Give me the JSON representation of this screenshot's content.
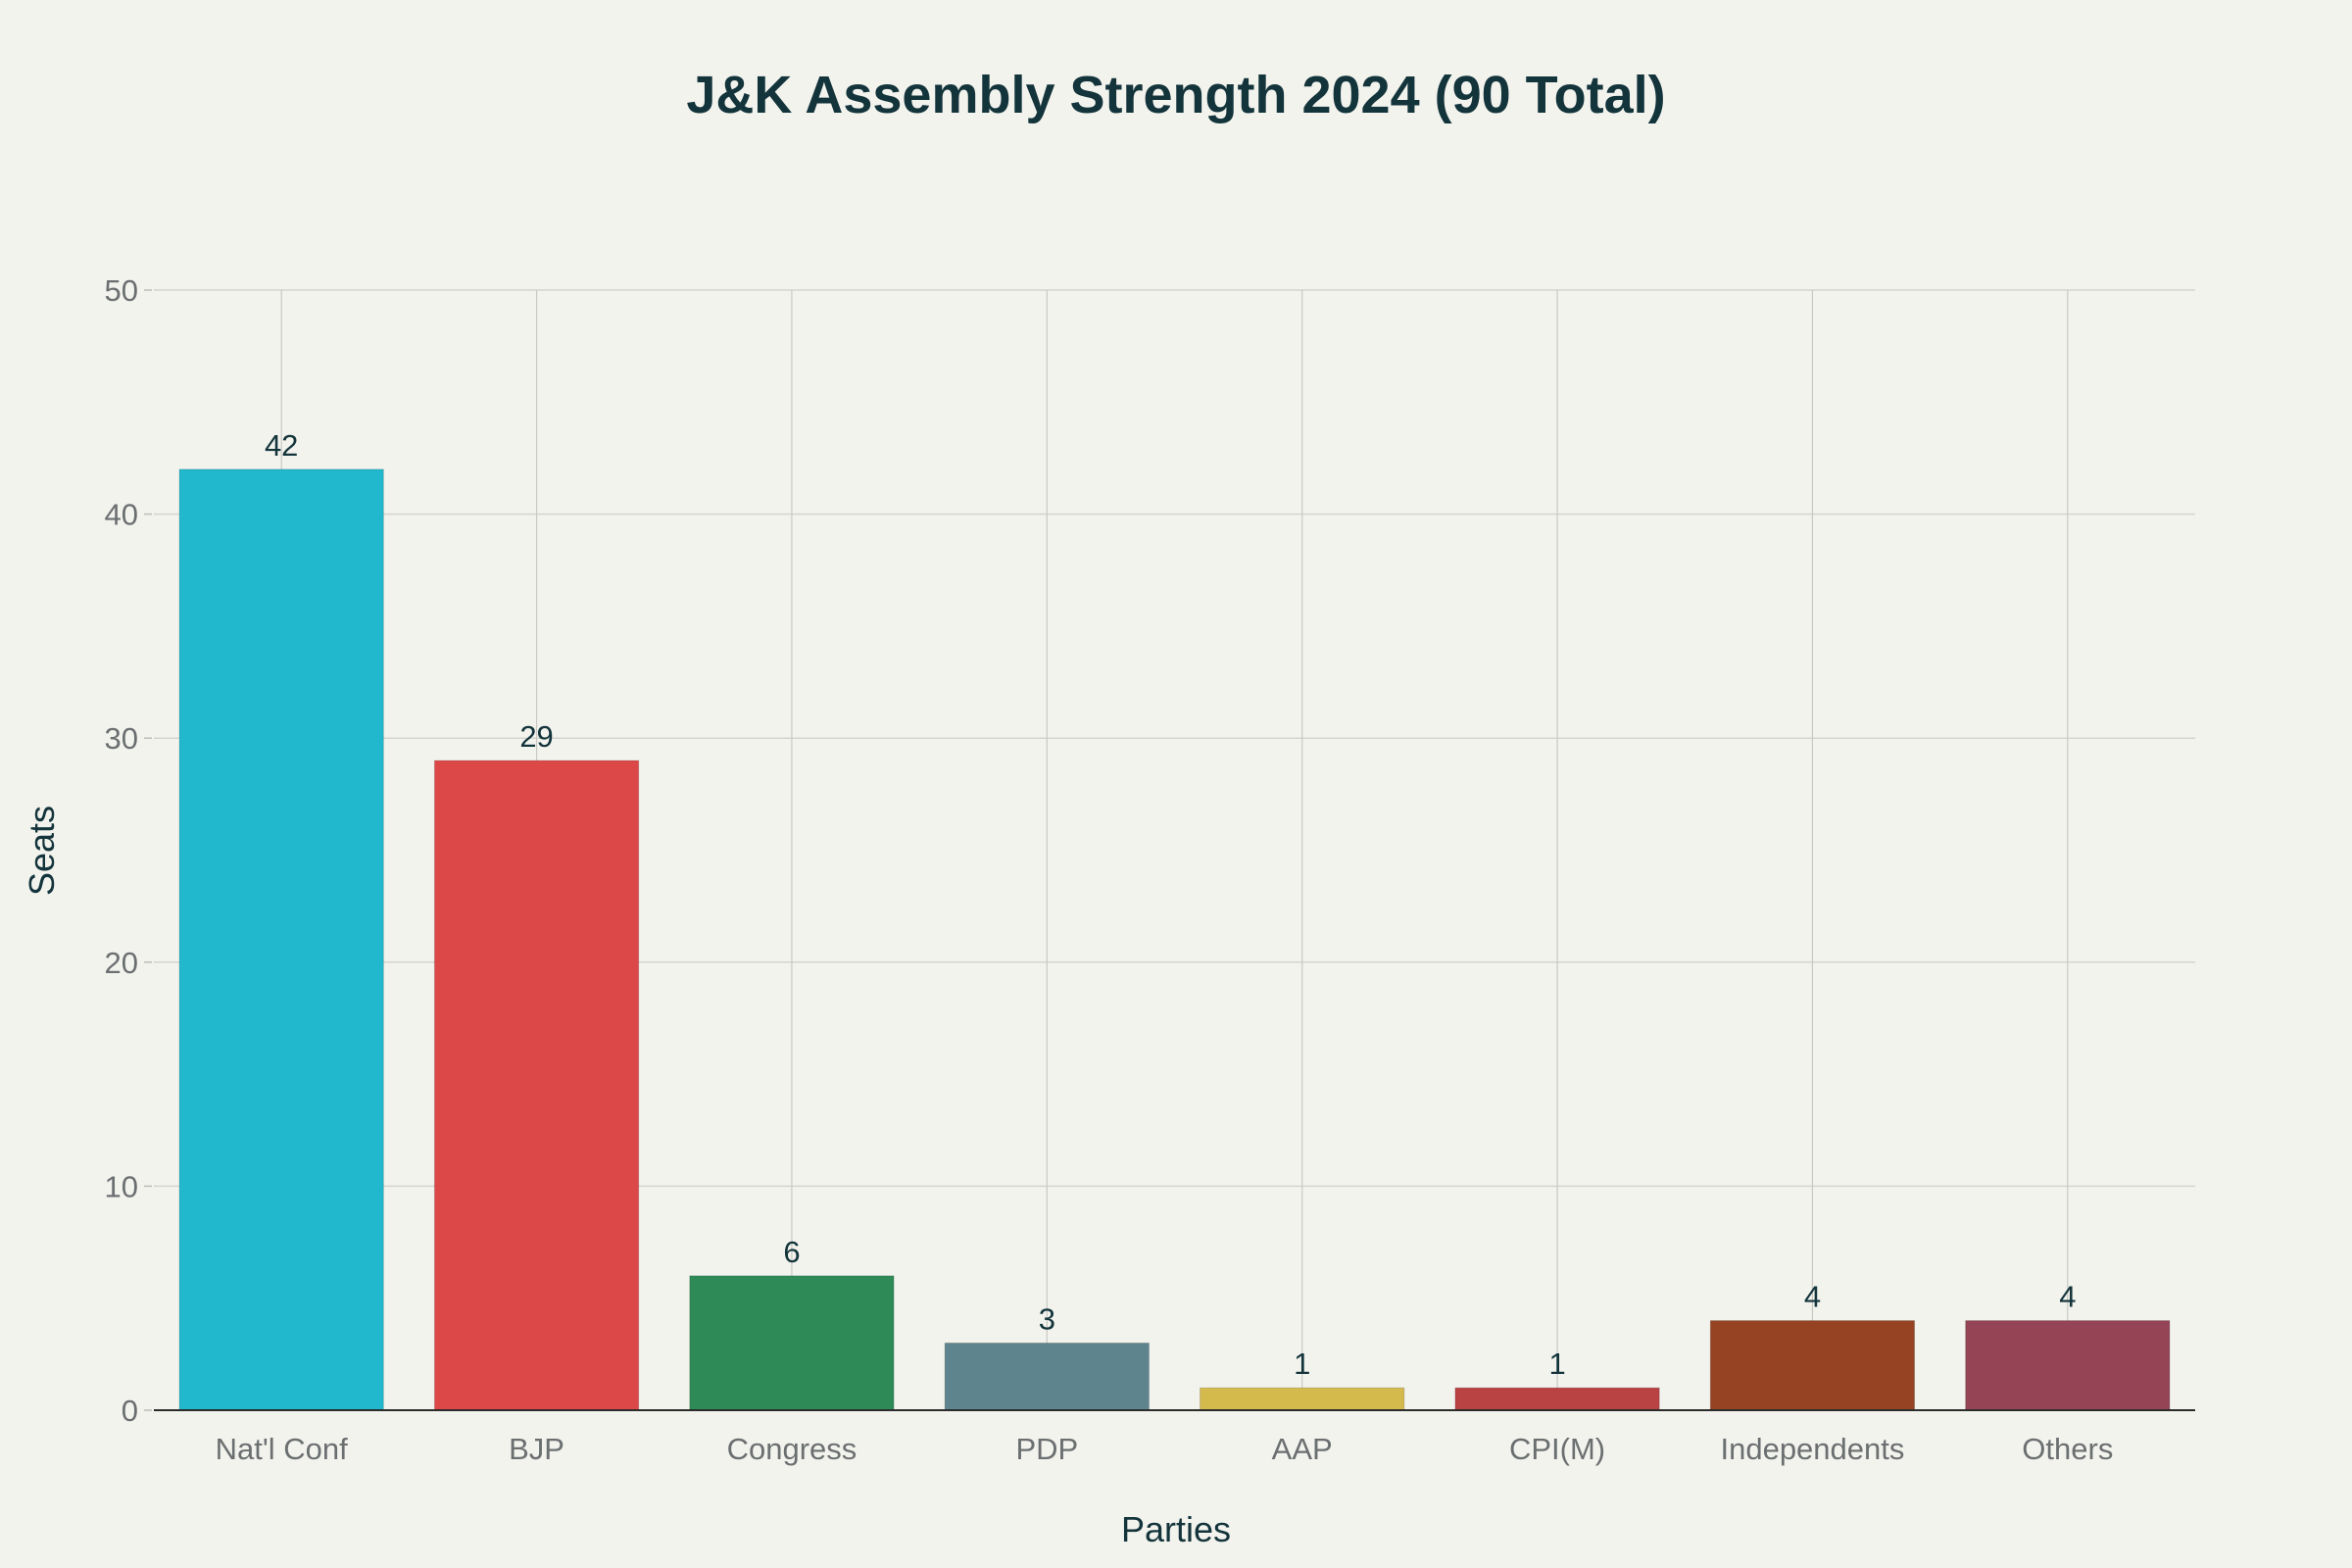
{
  "chart_data": {
    "type": "bar",
    "title": "J&K Assembly Strength 2024 (90 Total)",
    "xlabel": "Parties",
    "ylabel": "Seats",
    "categories": [
      "Nat'l Conf",
      "BJP",
      "Congress",
      "PDP",
      "AAP",
      "CPI(M)",
      "Independents",
      "Others"
    ],
    "values": [
      42,
      29,
      6,
      3,
      1,
      1,
      4,
      4
    ],
    "colors": [
      "#21b8cd",
      "#dc4747",
      "#2e8b57",
      "#5e858d",
      "#d4b94c",
      "#b94242",
      "#964323",
      "#944455"
    ],
    "ylim": [
      0,
      50
    ],
    "yticks": [
      0,
      10,
      20,
      30,
      40,
      50
    ],
    "grid": true,
    "legend": "none"
  }
}
